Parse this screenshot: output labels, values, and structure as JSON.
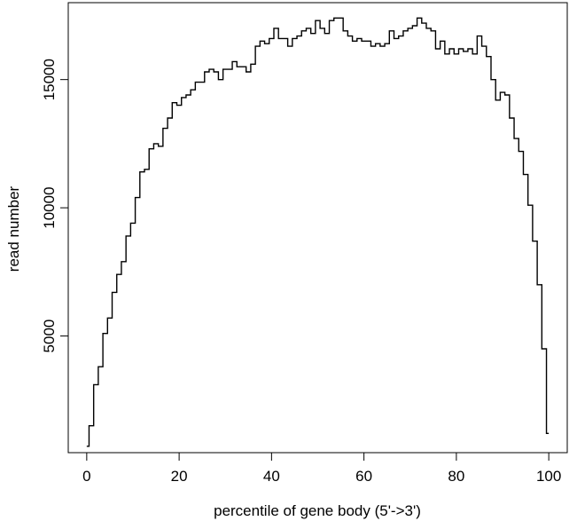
{
  "chart_data": {
    "type": "line",
    "style": "step",
    "title": "",
    "xlabel": "percentile of gene body (5'->3')",
    "ylabel": "read number",
    "xlim": [
      -4,
      104
    ],
    "ylim": [
      450,
      18000
    ],
    "xticks": [
      0,
      20,
      40,
      60,
      80,
      100
    ],
    "xtick_labels": [
      "0",
      "20",
      "40",
      "60",
      "80",
      "100"
    ],
    "yticks": [
      5000,
      10000,
      15000
    ],
    "ytick_labels": [
      "5000",
      "10000",
      "15000"
    ],
    "grid": false,
    "legend": "none",
    "line_color": "#000000",
    "series": [
      {
        "x": [
          0,
          1,
          2,
          3,
          4,
          5,
          6,
          7,
          8,
          9,
          10,
          11,
          12,
          13,
          14,
          15,
          16,
          17,
          18,
          19,
          20,
          21,
          22,
          23,
          24,
          25,
          26,
          27,
          28,
          29,
          30,
          31,
          32,
          33,
          34,
          35,
          36,
          37,
          38,
          39,
          40,
          41,
          42,
          43,
          44,
          45,
          46,
          47,
          48,
          49,
          50,
          51,
          52,
          53,
          54,
          55,
          56,
          57,
          58,
          59,
          60,
          61,
          62,
          63,
          64,
          65,
          66,
          67,
          68,
          69,
          70,
          71,
          72,
          73,
          74,
          75,
          76,
          77,
          78,
          79,
          80,
          81,
          82,
          83,
          84,
          85,
          86,
          87,
          88,
          89,
          90,
          91,
          92,
          93,
          94,
          95,
          96,
          97,
          98,
          99,
          100
        ],
        "values": [
          700,
          1500,
          3100,
          3800,
          5100,
          5700,
          6700,
          7400,
          7900,
          8900,
          9400,
          10400,
          11400,
          11500,
          12300,
          12500,
          12400,
          13100,
          13500,
          14100,
          14000,
          14300,
          14400,
          14600,
          14900,
          14900,
          15300,
          15400,
          15300,
          15000,
          15400,
          15400,
          15700,
          15500,
          15500,
          15300,
          15600,
          16300,
          16500,
          16400,
          16600,
          17000,
          16600,
          16600,
          16300,
          16600,
          16700,
          16900,
          17000,
          16800,
          17300,
          17000,
          16800,
          17300,
          17400,
          17400,
          16900,
          16700,
          16500,
          16600,
          16500,
          16500,
          16300,
          16400,
          16300,
          16400,
          16900,
          16600,
          16700,
          16900,
          17000,
          17100,
          17400,
          17200,
          17000,
          16900,
          16200,
          16500,
          16000,
          16200,
          16000,
          16200,
          16100,
          16200,
          16000,
          16700,
          16300,
          15900,
          15000,
          14200,
          14500,
          14400,
          13500,
          12700,
          12200,
          11300,
          10100,
          8700,
          7000,
          4500,
          1200
        ]
      }
    ]
  }
}
